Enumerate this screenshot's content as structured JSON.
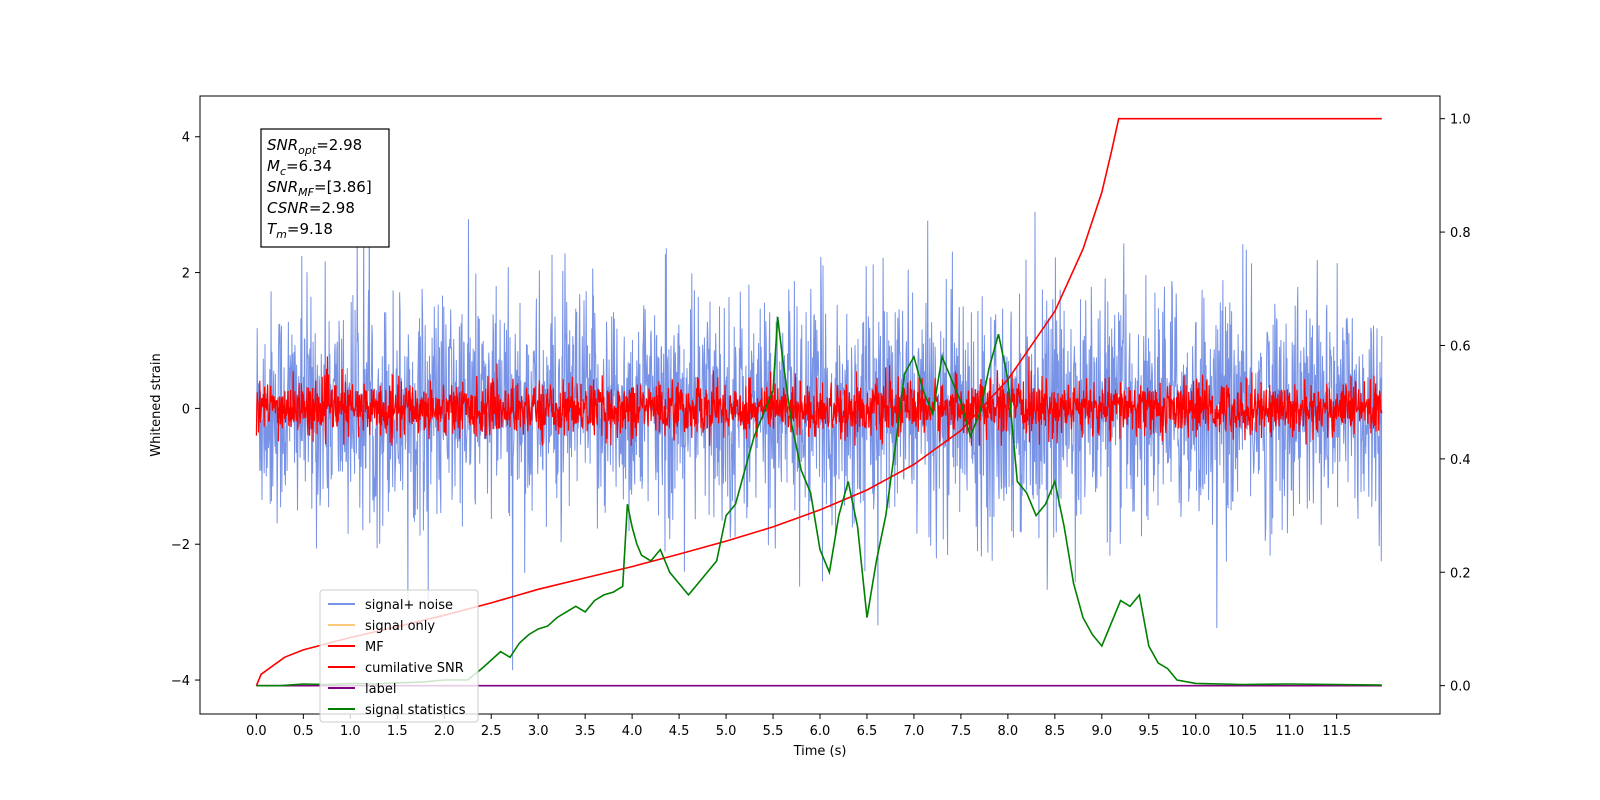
{
  "chart_data": {
    "type": "line",
    "xlabel": "Time (s)",
    "ylabel": "Whitened strain",
    "xlim": [
      -0.6,
      12.6
    ],
    "ylim": [
      -4.5,
      4.6
    ],
    "y2lim": [
      -0.05,
      1.04
    ],
    "x_ticks": [
      0.0,
      0.5,
      1.0,
      1.5,
      2.0,
      2.5,
      3.0,
      3.5,
      4.0,
      4.5,
      5.0,
      5.5,
      6.0,
      6.5,
      7.0,
      7.5,
      8.0,
      8.5,
      9.0,
      9.5,
      10.0,
      10.5,
      11.0,
      11.5
    ],
    "x_tick_labels": [
      "0.0",
      "0.5",
      "1.0",
      "1.5",
      "2.0",
      "2.5",
      "3.0",
      "3.5",
      "4.0",
      "4.5",
      "5.0",
      "5.5",
      "6.0",
      "6.5",
      "7.0",
      "7.5",
      "8.0",
      "8.5",
      "9.0",
      "9.5",
      "10.0",
      "10.5",
      "11.0",
      "11.5"
    ],
    "y_ticks": [
      -4,
      -2,
      0,
      2,
      4
    ],
    "y_tick_labels": [
      "−4",
      "−2",
      "0",
      "2",
      "4"
    ],
    "y2_ticks": [
      0.0,
      0.2,
      0.4,
      0.6,
      0.8,
      1.0
    ],
    "y2_tick_labels": [
      "0.0",
      "0.2",
      "0.4",
      "0.6",
      "0.8",
      "1.0"
    ],
    "grid": false,
    "legend_position": "lower-left",
    "annotation": {
      "lines": [
        {
          "main": "SNR",
          "sub": "opt",
          "value": "=2.98"
        },
        {
          "main": "M",
          "sub": "c",
          "value": "=6.34"
        },
        {
          "main": "SNR",
          "sub": "MF",
          "value": "=[3.86]"
        },
        {
          "main": "CSNR",
          "sub": "",
          "value": "=2.98"
        },
        {
          "main": "T",
          "sub": "m",
          "value": "=9.18"
        }
      ]
    },
    "series": [
      {
        "name": "signal+ noise",
        "color": "#7893e6",
        "axis": "left",
        "kind": "noise",
        "t_start": 0.0,
        "t_end": 11.98,
        "amplitude_typical": 1.6,
        "amplitude_min": -4.0,
        "amplitude_max": 4.15
      },
      {
        "name": "signal only",
        "color": "#ffc87a",
        "axis": "left",
        "kind": "hidden"
      },
      {
        "name": "MF",
        "color": "#ff0000",
        "axis": "left",
        "kind": "noise",
        "t_start": 0.0,
        "t_end": 11.98,
        "amplitude_typical": 0.45,
        "amplitude_max": 0.95
      },
      {
        "name": "cumilative SNR",
        "color": "#ff0000",
        "axis": "right",
        "kind": "curve",
        "x": [
          0.0,
          0.05,
          0.3,
          0.5,
          1.0,
          1.5,
          2.0,
          2.5,
          3.0,
          3.5,
          4.0,
          4.5,
          5.0,
          5.5,
          6.0,
          6.5,
          7.0,
          7.5,
          8.0,
          8.5,
          8.8,
          9.0,
          9.1,
          9.18,
          9.5,
          10.0,
          11.0,
          11.98
        ],
        "y": [
          0.0,
          0.02,
          0.05,
          0.063,
          0.085,
          0.104,
          0.124,
          0.146,
          0.17,
          0.19,
          0.21,
          0.232,
          0.255,
          0.28,
          0.31,
          0.345,
          0.39,
          0.45,
          0.54,
          0.66,
          0.77,
          0.87,
          0.94,
          1.0,
          1.0,
          1.0,
          1.0,
          1.0
        ]
      },
      {
        "name": "label",
        "color": "#800080",
        "axis": "right",
        "kind": "flat",
        "x": [
          0.0,
          11.98
        ],
        "y": [
          0.0,
          0.0
        ]
      },
      {
        "name": "signal statistics",
        "color": "#008000",
        "axis": "right",
        "kind": "curve",
        "x": [
          0.0,
          0.25,
          0.5,
          0.75,
          1.0,
          1.25,
          1.5,
          1.75,
          2.0,
          2.25,
          2.4,
          2.5,
          2.6,
          2.7,
          2.8,
          2.9,
          3.0,
          3.1,
          3.2,
          3.3,
          3.4,
          3.5,
          3.6,
          3.7,
          3.8,
          3.9,
          3.95,
          4.0,
          4.05,
          4.1,
          4.2,
          4.3,
          4.4,
          4.5,
          4.6,
          4.7,
          4.8,
          4.9,
          5.0,
          5.1,
          5.2,
          5.3,
          5.4,
          5.5,
          5.55,
          5.6,
          5.7,
          5.8,
          5.9,
          6.0,
          6.1,
          6.2,
          6.3,
          6.4,
          6.5,
          6.6,
          6.7,
          6.8,
          6.9,
          7.0,
          7.1,
          7.2,
          7.3,
          7.4,
          7.5,
          7.6,
          7.7,
          7.8,
          7.9,
          8.0,
          8.1,
          8.2,
          8.3,
          8.4,
          8.5,
          8.6,
          8.7,
          8.8,
          8.9,
          9.0,
          9.1,
          9.2,
          9.3,
          9.4,
          9.5,
          9.6,
          9.7,
          9.8,
          10.0,
          10.5,
          11.0,
          11.5,
          11.98
        ],
        "y": [
          0.0,
          0.0,
          0.003,
          0.002,
          0.004,
          0.003,
          0.005,
          0.006,
          0.01,
          0.01,
          0.03,
          0.045,
          0.06,
          0.05,
          0.075,
          0.09,
          0.1,
          0.105,
          0.12,
          0.13,
          0.14,
          0.13,
          0.15,
          0.16,
          0.165,
          0.175,
          0.32,
          0.28,
          0.25,
          0.23,
          0.22,
          0.24,
          0.2,
          0.18,
          0.16,
          0.18,
          0.2,
          0.22,
          0.3,
          0.32,
          0.38,
          0.44,
          0.48,
          0.52,
          0.65,
          0.58,
          0.46,
          0.38,
          0.34,
          0.24,
          0.2,
          0.3,
          0.36,
          0.28,
          0.12,
          0.22,
          0.3,
          0.42,
          0.55,
          0.58,
          0.52,
          0.48,
          0.58,
          0.54,
          0.5,
          0.44,
          0.48,
          0.56,
          0.62,
          0.54,
          0.36,
          0.34,
          0.3,
          0.32,
          0.36,
          0.28,
          0.18,
          0.12,
          0.09,
          0.07,
          0.11,
          0.15,
          0.14,
          0.16,
          0.07,
          0.04,
          0.03,
          0.01,
          0.004,
          0.002,
          0.003,
          0.002,
          0.001
        ]
      }
    ]
  }
}
